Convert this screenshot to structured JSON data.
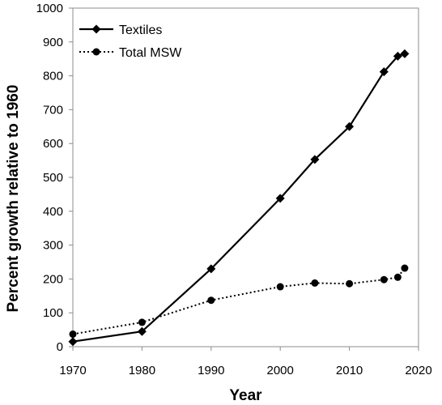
{
  "chart_data": {
    "type": "line",
    "xlabel": "Year",
    "ylabel": "Percent growth relative to 1960",
    "xlim": [
      1970,
      2020
    ],
    "ylim": [
      0,
      1000
    ],
    "xticks": [
      1970,
      1980,
      1990,
      2000,
      2010,
      2020
    ],
    "yticks": [
      0,
      100,
      200,
      300,
      400,
      500,
      600,
      700,
      800,
      900,
      1000
    ],
    "legend_position": "top-left",
    "series": [
      {
        "name": "Textiles",
        "style": "solid",
        "marker": "diamond",
        "color": "#000000",
        "x": [
          1970,
          1980,
          1990,
          2000,
          2005,
          2010,
          2015,
          2017,
          2018
        ],
        "y": [
          15,
          45,
          230,
          438,
          553,
          650,
          812,
          858,
          865
        ]
      },
      {
        "name": "Total MSW",
        "style": "dotted",
        "marker": "circle",
        "color": "#000000",
        "x": [
          1970,
          1980,
          1990,
          2000,
          2005,
          2010,
          2015,
          2017,
          2018
        ],
        "y": [
          37,
          72,
          137,
          177,
          188,
          186,
          198,
          205,
          232
        ]
      }
    ]
  }
}
